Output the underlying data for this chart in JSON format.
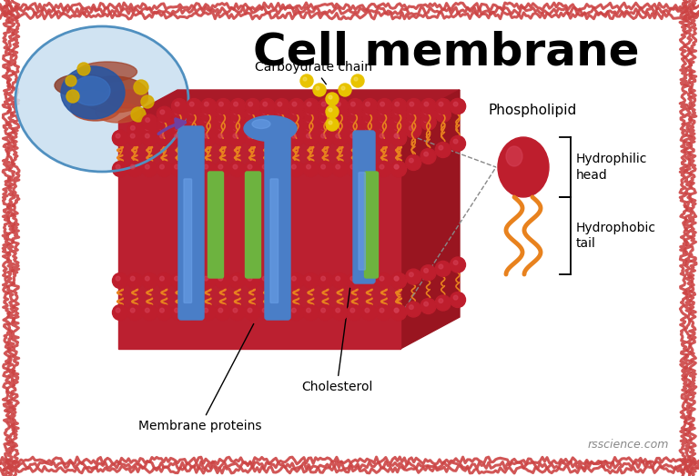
{
  "title": "Cell membrane",
  "title_fontsize": 36,
  "bg_color": "#ffffff",
  "border_color": "#cc4444",
  "labels": {
    "carbohydrate_chain": "Carboydrate chain",
    "phospholipid": "Phospholipid",
    "hydrophilic_head": "Hydrophilic\nhead",
    "hydrophobic_tail": "Hydrophobic\ntail",
    "cholesterol": "Cholesterol",
    "membrane_proteins": "Membrane proteins",
    "attribution": "rsscience.com"
  },
  "colors": {
    "red_ball": "#be1e2d",
    "red_ball_highlight": "#d44055",
    "red_dark": "#991020",
    "blue_protein": "#4a7ec7",
    "blue_protein_light": "#6aa0e8",
    "green_bar": "#6db33f",
    "orange_tail": "#e8821e",
    "yellow_chain": "#e8c400",
    "yellow_chain_light": "#f5e060",
    "purple_arrow": "#7040a0",
    "membrane_fill": "#cc2233"
  },
  "font_label_size": 10,
  "attribution_fontsize": 9
}
